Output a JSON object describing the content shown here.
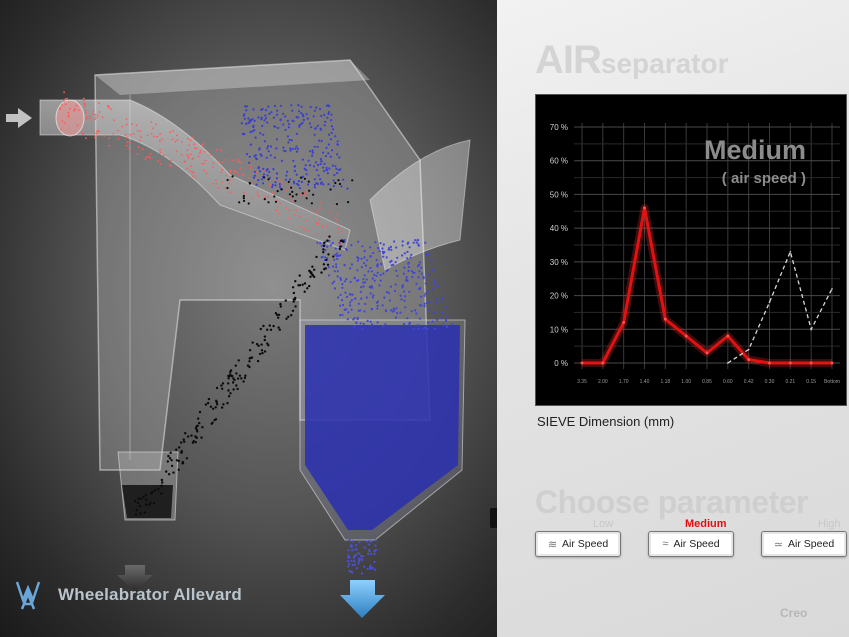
{
  "brand": {
    "name": "Wheelabrator Allevard"
  },
  "app": {
    "title_big": "AIR",
    "title_small": "separator"
  },
  "chart_data": {
    "type": "line",
    "title": "Medium",
    "subtitle": "( air speed )",
    "xlabel": "SIEVE Dimension (mm)",
    "y_ticks": [
      "70 %",
      "60 %",
      "50 %",
      "40 %",
      "30 %",
      "20 %",
      "10 %",
      "0 %"
    ],
    "ylim": [
      0,
      70
    ],
    "categories": [
      "3.35",
      "2.00",
      "1.70",
      "1.40",
      "1.18",
      "1.00",
      "0.85",
      "0.60",
      "0.42",
      "0.30",
      "0.21",
      "0.15",
      "Bottom"
    ],
    "series": [
      {
        "values": [
          0,
          0,
          12,
          46,
          13,
          8,
          3,
          8,
          1,
          0,
          0,
          0,
          0
        ],
        "color": "#e01212"
      },
      {
        "values": [
          null,
          null,
          null,
          null,
          null,
          null,
          null,
          0,
          4,
          18,
          33,
          10,
          22
        ],
        "color": "#d8d8d8",
        "dashed": true
      }
    ],
    "grid": true
  },
  "controls": {
    "title": "Choose parameter",
    "levels": [
      {
        "label": "Low",
        "active": false
      },
      {
        "label": "Medium",
        "active": true
      },
      {
        "label": "High",
        "active": false
      }
    ],
    "buttons": [
      {
        "label": "Air Speed",
        "icon": "wave-icon"
      },
      {
        "label": "Air Speed",
        "icon": "wave-icon"
      },
      {
        "label": "Air Speed",
        "icon": "wave-icon"
      }
    ]
  },
  "footer": {
    "creo": "Creo"
  }
}
